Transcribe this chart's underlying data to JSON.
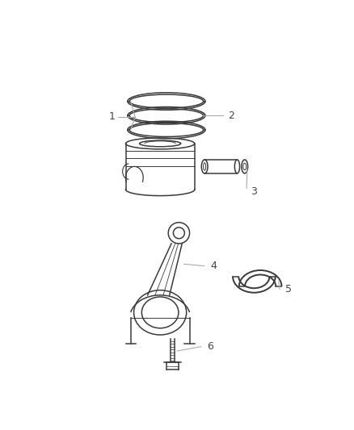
{
  "background_color": "#ffffff",
  "line_color": "#3a3a3a",
  "leader_color": "#aaaaaa",
  "label_color": "#444444",
  "label_fontsize": 9,
  "fig_width": 4.38,
  "fig_height": 5.33
}
